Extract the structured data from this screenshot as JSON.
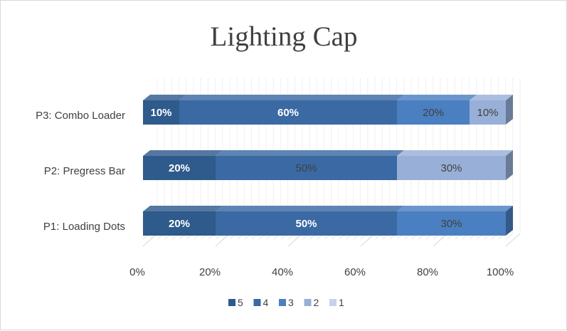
{
  "chart_data": {
    "type": "bar",
    "orientation": "horizontal",
    "stacked": "percent",
    "three_d": true,
    "title": "Lighting Cap",
    "xlabel": "",
    "ylabel": "",
    "xlim": [
      0,
      100
    ],
    "x_ticks": [
      "0%",
      "20%",
      "40%",
      "60%",
      "80%",
      "100%"
    ],
    "categories": [
      "P1: Loading Dots",
      "P2: Pregress Bar",
      "P3: Combo Loader"
    ],
    "series": [
      {
        "name": "5",
        "color": "#2e5a8c",
        "values": [
          20,
          20,
          10
        ],
        "labels": [
          "20%",
          "20%",
          "10%"
        ],
        "label_color": "#ffffff",
        "label_bold": true
      },
      {
        "name": "4",
        "color": "#3a69a3",
        "values": [
          50,
          50,
          60
        ],
        "labels": [
          "50%",
          "50%",
          "60%"
        ],
        "label_color": [
          "#ffffff",
          "#404040",
          "#ffffff"
        ],
        "label_bold": [
          true,
          false,
          true
        ]
      },
      {
        "name": "3",
        "color": "#4a7fc1",
        "values": [
          30,
          0,
          20
        ],
        "labels": [
          "30%",
          "",
          "20%"
        ],
        "label_color": "#404040",
        "label_bold": false
      },
      {
        "name": "2",
        "color": "#98b0d8",
        "values": [
          0,
          30,
          10
        ],
        "labels": [
          "",
          "30%",
          "10%"
        ],
        "label_color": "#404040",
        "label_bold": false
      },
      {
        "name": "1",
        "color": "#c5d2e8",
        "values": [
          0,
          0,
          0
        ],
        "labels": [
          "",
          "",
          ""
        ],
        "label_color": "#404040",
        "label_bold": false
      }
    ],
    "grid": true,
    "legend_position": "bottom"
  }
}
